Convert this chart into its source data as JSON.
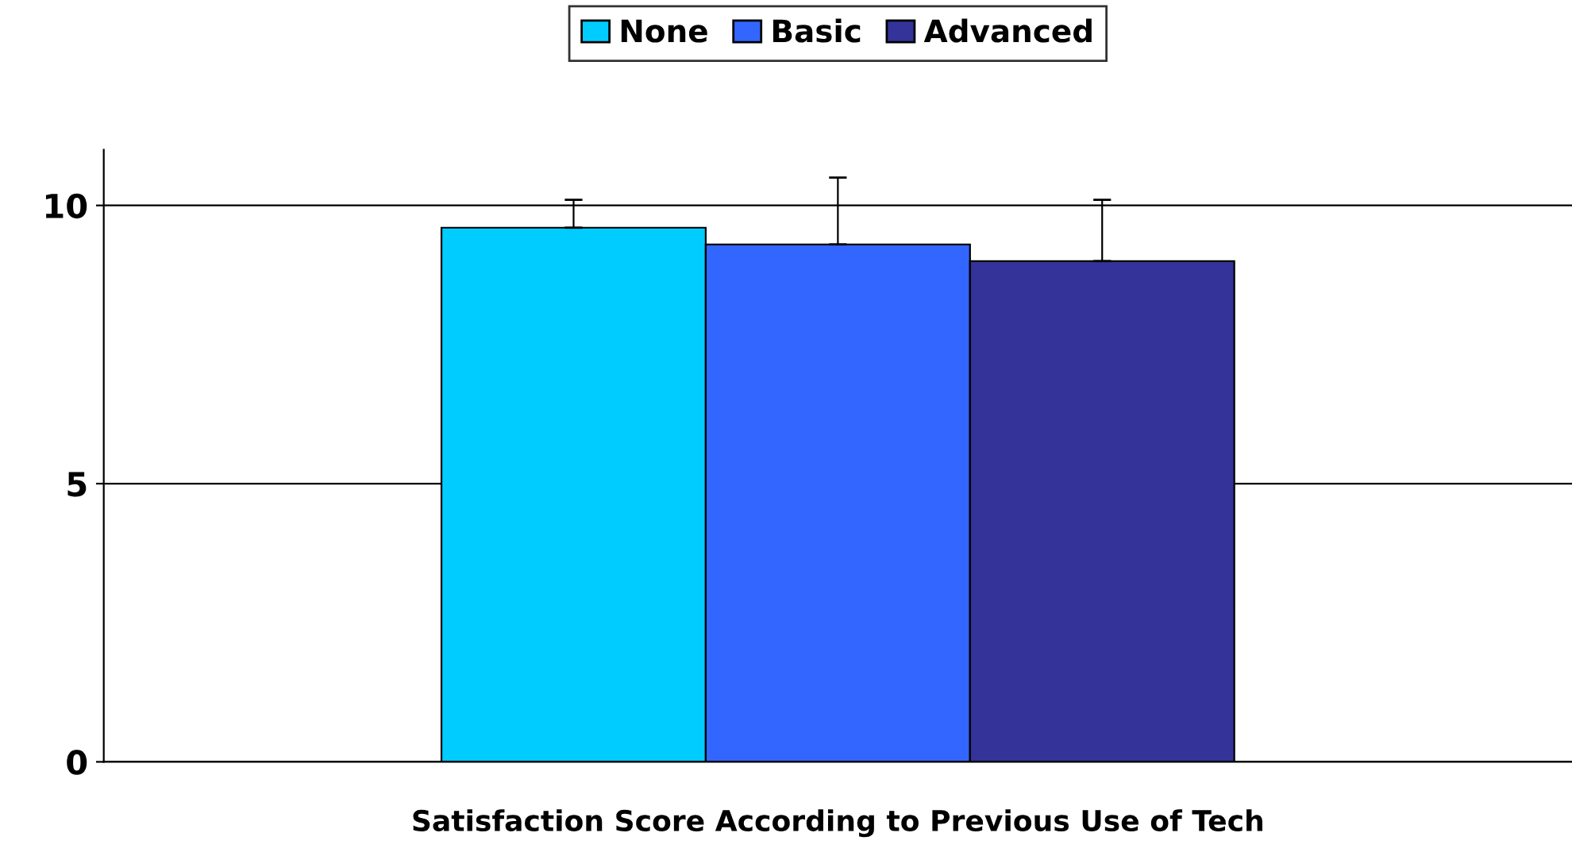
{
  "chart_data": {
    "type": "bar",
    "xlabel": "Satisfaction Score According to Previous Use of Tech",
    "categories": [
      null
    ],
    "series": [
      {
        "name": "None",
        "color": "#00ccff",
        "values": [
          9.6
        ],
        "errors": [
          [
            9.6,
            10.1
          ]
        ]
      },
      {
        "name": "Basic",
        "color": "#3366ff",
        "values": [
          9.3
        ],
        "errors": [
          [
            9.3,
            10.5
          ]
        ]
      },
      {
        "name": "Advanced",
        "color": "#333399",
        "values": [
          9.0
        ],
        "errors": [
          [
            9.0,
            10.1
          ]
        ]
      }
    ],
    "ylim": [
      0,
      11
    ],
    "yticks": [
      0,
      5,
      10
    ],
    "grid": "y",
    "legend": "top"
  }
}
